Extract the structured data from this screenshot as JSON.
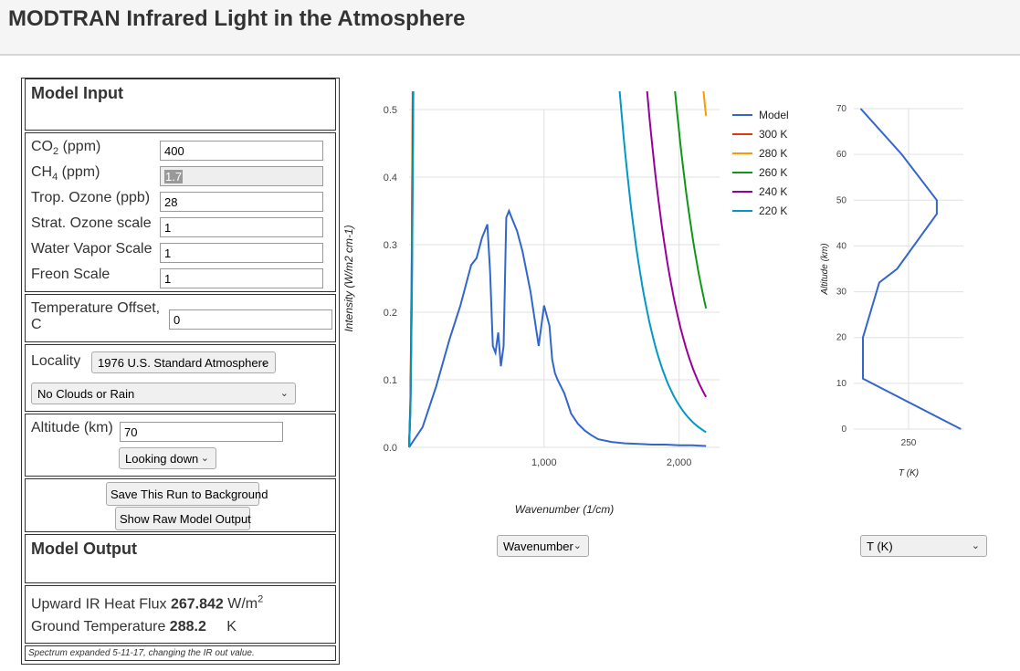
{
  "header": {
    "title": "MODTRAN Infrared Light in the Atmosphere"
  },
  "model_input": {
    "title": "Model Input",
    "co2": {
      "label_pre": "CO",
      "label_sub": "2",
      "label_post": " (ppm)",
      "value": "400"
    },
    "ch4": {
      "label_pre": "CH",
      "label_sub": "4",
      "label_post": " (ppm)",
      "value": "1.7"
    },
    "trop_ozone": {
      "label": "Trop. Ozone (ppb)",
      "value": "28"
    },
    "strat_ozone": {
      "label": "Strat. Ozone scale",
      "value": "1"
    },
    "water_vapor": {
      "label": "Water Vapor Scale",
      "value": "1"
    },
    "freon": {
      "label": "Freon Scale",
      "value": "1"
    },
    "temp_offset": {
      "label_line1": "Temperature Offset,",
      "label_line2": "C",
      "value": "0"
    },
    "locality": {
      "label": "Locality",
      "value": "1976 U.S. Standard Atmosphere"
    },
    "clouds": {
      "value": "No Clouds or Rain"
    },
    "altitude": {
      "label": "Altitude (km)",
      "value": "70"
    },
    "looking": {
      "value": "Looking down"
    },
    "save_button": "Save This Run to Background",
    "raw_button": "Show Raw Model Output"
  },
  "model_output": {
    "title": "Model Output",
    "flux_label": "Upward IR Heat Flux",
    "flux_value": "267.842",
    "flux_unit_pre": "W/m",
    "flux_unit_sup": "2",
    "ground_label": "Ground Temperature",
    "ground_value": "288.2",
    "ground_unit": "K",
    "note": "Spectrum expanded 5-11-17, changing the IR out value."
  },
  "spectrum_select": {
    "value": "Wavenumber"
  },
  "profile_select": {
    "value": "T (K)"
  },
  "chart_data": [
    {
      "type": "line",
      "xlabel": "Wavenumber (1/cm)",
      "ylabel": "Intensity (W/m2 cm-1)",
      "xlim": [
        0,
        2300
      ],
      "ylim": [
        0,
        0.5
      ],
      "x_ticks": [
        {
          "v": 1000,
          "label": "1,000"
        },
        {
          "v": 2000,
          "label": "2,000"
        }
      ],
      "y_ticks": [
        {
          "v": 0,
          "label": "0.0"
        },
        {
          "v": 0.1,
          "label": "0.1"
        },
        {
          "v": 0.2,
          "label": "0.2"
        },
        {
          "v": 0.3,
          "label": "0.3"
        },
        {
          "v": 0.4,
          "label": "0.4"
        },
        {
          "v": 0.5,
          "label": "0.5"
        }
      ],
      "grid": true,
      "legend": "right",
      "series": [
        {
          "name": "Model",
          "color": "#3366cc",
          "kind": "model",
          "x": [
            0,
            100,
            200,
            300,
            380,
            420,
            460,
            500,
            540,
            580,
            600,
            620,
            640,
            660,
            680,
            700,
            720,
            740,
            760,
            780,
            800,
            840,
            880,
            900,
            960,
            1000,
            1040,
            1060,
            1080,
            1100,
            1150,
            1200,
            1250,
            1300,
            1350,
            1400,
            1500,
            1600,
            1700,
            1800,
            1900,
            2000,
            2100,
            2200
          ],
          "y": [
            0,
            0.03,
            0.09,
            0.16,
            0.21,
            0.24,
            0.27,
            0.28,
            0.31,
            0.33,
            0.26,
            0.15,
            0.14,
            0.17,
            0.12,
            0.15,
            0.34,
            0.35,
            0.34,
            0.33,
            0.32,
            0.29,
            0.25,
            0.23,
            0.15,
            0.21,
            0.18,
            0.13,
            0.11,
            0.1,
            0.08,
            0.05,
            0.035,
            0.025,
            0.018,
            0.012,
            0.008,
            0.006,
            0.005,
            0.004,
            0.004,
            0.003,
            0.003,
            0.002
          ]
        },
        {
          "name": "300 K",
          "color": "#dc3912",
          "T": 300
        },
        {
          "name": "280 K",
          "color": "#ff9900",
          "T": 280
        },
        {
          "name": "260 K",
          "color": "#109618",
          "T": 260
        },
        {
          "name": "240 K",
          "color": "#990099",
          "T": 240
        },
        {
          "name": "220 K",
          "color": "#0099c6",
          "T": 220
        }
      ]
    },
    {
      "type": "line",
      "xlabel": "T (K)",
      "ylabel": "Altitude (km)",
      "xlim": [
        210,
        290
      ],
      "ylim": [
        0,
        70
      ],
      "x_ticks": [
        {
          "v": 250,
          "label": "250"
        }
      ],
      "y_ticks": [
        {
          "v": 0,
          "label": "0"
        },
        {
          "v": 10,
          "label": "10"
        },
        {
          "v": 20,
          "label": "20"
        },
        {
          "v": 30,
          "label": "30"
        },
        {
          "v": 40,
          "label": "40"
        },
        {
          "v": 50,
          "label": "50"
        },
        {
          "v": 60,
          "label": "60"
        },
        {
          "v": 70,
          "label": "70"
        }
      ],
      "grid": true,
      "series": [
        {
          "color": "#3366cc",
          "x": [
            288.2,
            216.7,
            216.7,
            228.6,
            241.6,
            270.6,
            270.6,
            245,
            215
          ],
          "y": [
            0,
            11,
            20,
            32,
            35,
            47,
            50,
            60,
            70
          ]
        }
      ]
    }
  ]
}
